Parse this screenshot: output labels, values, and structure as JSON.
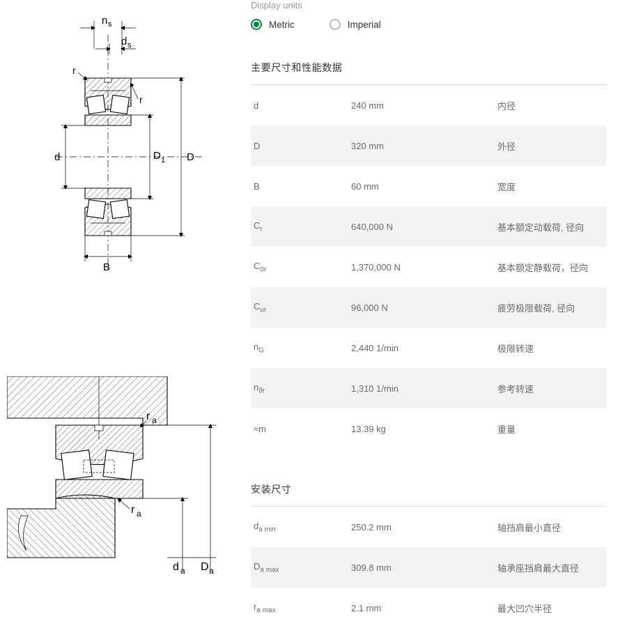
{
  "units": {
    "label": "Display units",
    "metric": "Metric",
    "imperial": "Imperial",
    "selected": "metric"
  },
  "colors": {
    "accent": "#00863f",
    "text_muted": "#6b6b6b",
    "text_light": "#9a9a9a",
    "row_alt_bg": "#f3f3f3",
    "divider": "#d6d6d6",
    "page_bg": "#ffffff",
    "ink": "#000000"
  },
  "sections": {
    "main": {
      "title": "主要尺寸和性能数据"
    },
    "mount": {
      "title": "安装尺寸"
    }
  },
  "specs_main": [
    {
      "sym": "d",
      "sub": "",
      "val": "240 mm",
      "desc": "内径"
    },
    {
      "sym": "D",
      "sub": "",
      "val": "320 mm",
      "desc": "外径"
    },
    {
      "sym": "B",
      "sub": "",
      "val": "60 mm",
      "desc": "宽度"
    },
    {
      "sym": "C",
      "sub": "r",
      "val": "640,000 N",
      "desc": "基本额定动载荷, 径向"
    },
    {
      "sym": "C",
      "sub": "0r",
      "val": "1,370,000 N",
      "desc": "基本额定静载荷，径向"
    },
    {
      "sym": "C",
      "sub": "ur",
      "val": "96,000 N",
      "desc": "疲劳极限载荷, 径向"
    },
    {
      "sym": "n",
      "sub": "G",
      "val": "2,440 1/min",
      "desc": "极限转速"
    },
    {
      "sym": "n",
      "sub": "ϑr",
      "val": "1,310 1/min",
      "desc": "参考转速"
    },
    {
      "sym": "≈m",
      "sub": "",
      "val": "13.39 kg",
      "desc": "重量"
    }
  ],
  "specs_mount": [
    {
      "sym": "d",
      "sub": "a min",
      "val": "250.2 mm",
      "desc": "轴挡肩最小直径"
    },
    {
      "sym": "D",
      "sub": "a max",
      "val": "309.8 mm",
      "desc": "轴承座挡肩最大直径"
    },
    {
      "sym": "r",
      "sub": "a max",
      "val": "2.1 mm",
      "desc": "最大凹穴半径"
    }
  ],
  "diag1_labels": {
    "ns": "n",
    "ns_sub": "s",
    "ds": "d",
    "ds_sub": "s",
    "r1": "r",
    "r2": "r",
    "d": "d",
    "D1": "D",
    "D1_sub": "1",
    "D": "D",
    "B": "B"
  },
  "diag2_labels": {
    "ra1": "r",
    "ra1_sub": "a",
    "ra2": "r",
    "ra2_sub": "a",
    "da": "d",
    "da_sub": "a",
    "Da": "D",
    "Da_sub": "a"
  }
}
